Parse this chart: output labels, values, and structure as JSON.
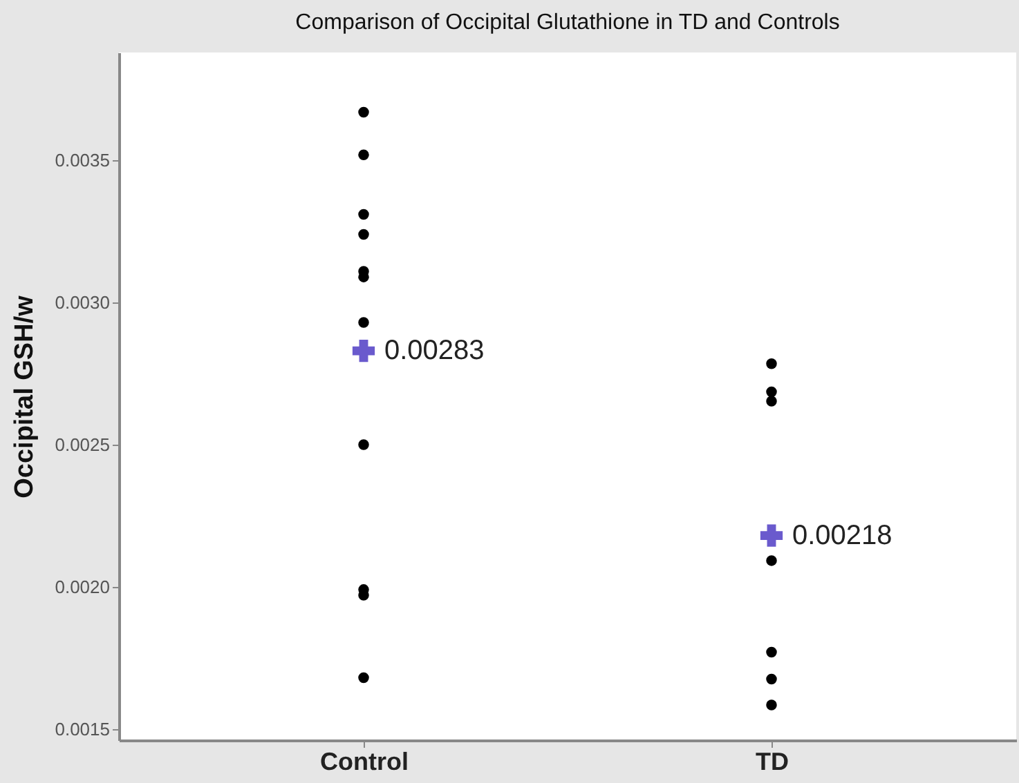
{
  "chart_data": {
    "type": "scatter",
    "title": "Comparison of Occipital Glutathione in TD and Controls",
    "ylabel": "Occipital GSH/w",
    "series": [
      {
        "color": "#000000",
        "marker": "circle",
        "x": [
          "Control",
          "Control",
          "Control",
          "Control",
          "Control",
          "Control",
          "Control",
          "Control",
          "Control",
          "Control",
          "Control",
          "TD",
          "TD",
          "TD",
          "TD",
          "TD",
          "TD",
          "TD"
        ],
        "values": [
          0.00367,
          0.00352,
          0.00331,
          0.00324,
          0.00311,
          0.00309,
          0.00293,
          0.0025,
          0.00199,
          0.00197,
          0.00168,
          0.002785,
          0.002686,
          0.002653,
          0.002092,
          0.00177,
          0.001675,
          0.001584
        ]
      },
      {
        "color": "#6a5acd",
        "marker": "cross",
        "x": [
          "Control",
          "TD"
        ],
        "values": [
          0.00283,
          0.00218
        ],
        "value_labels": [
          "0.00283",
          "0.00218"
        ]
      }
    ],
    "categories": [
      "Control",
      "TD"
    ],
    "ylim": [
      0.00146,
      0.00388
    ],
    "yticks": [
      0.0015,
      {
        "value": 0.002,
        "label": "0.0020"
      },
      0.0025,
      {
        "value": 0.003,
        "label": "0.0030"
      },
      0.0035
    ]
  }
}
